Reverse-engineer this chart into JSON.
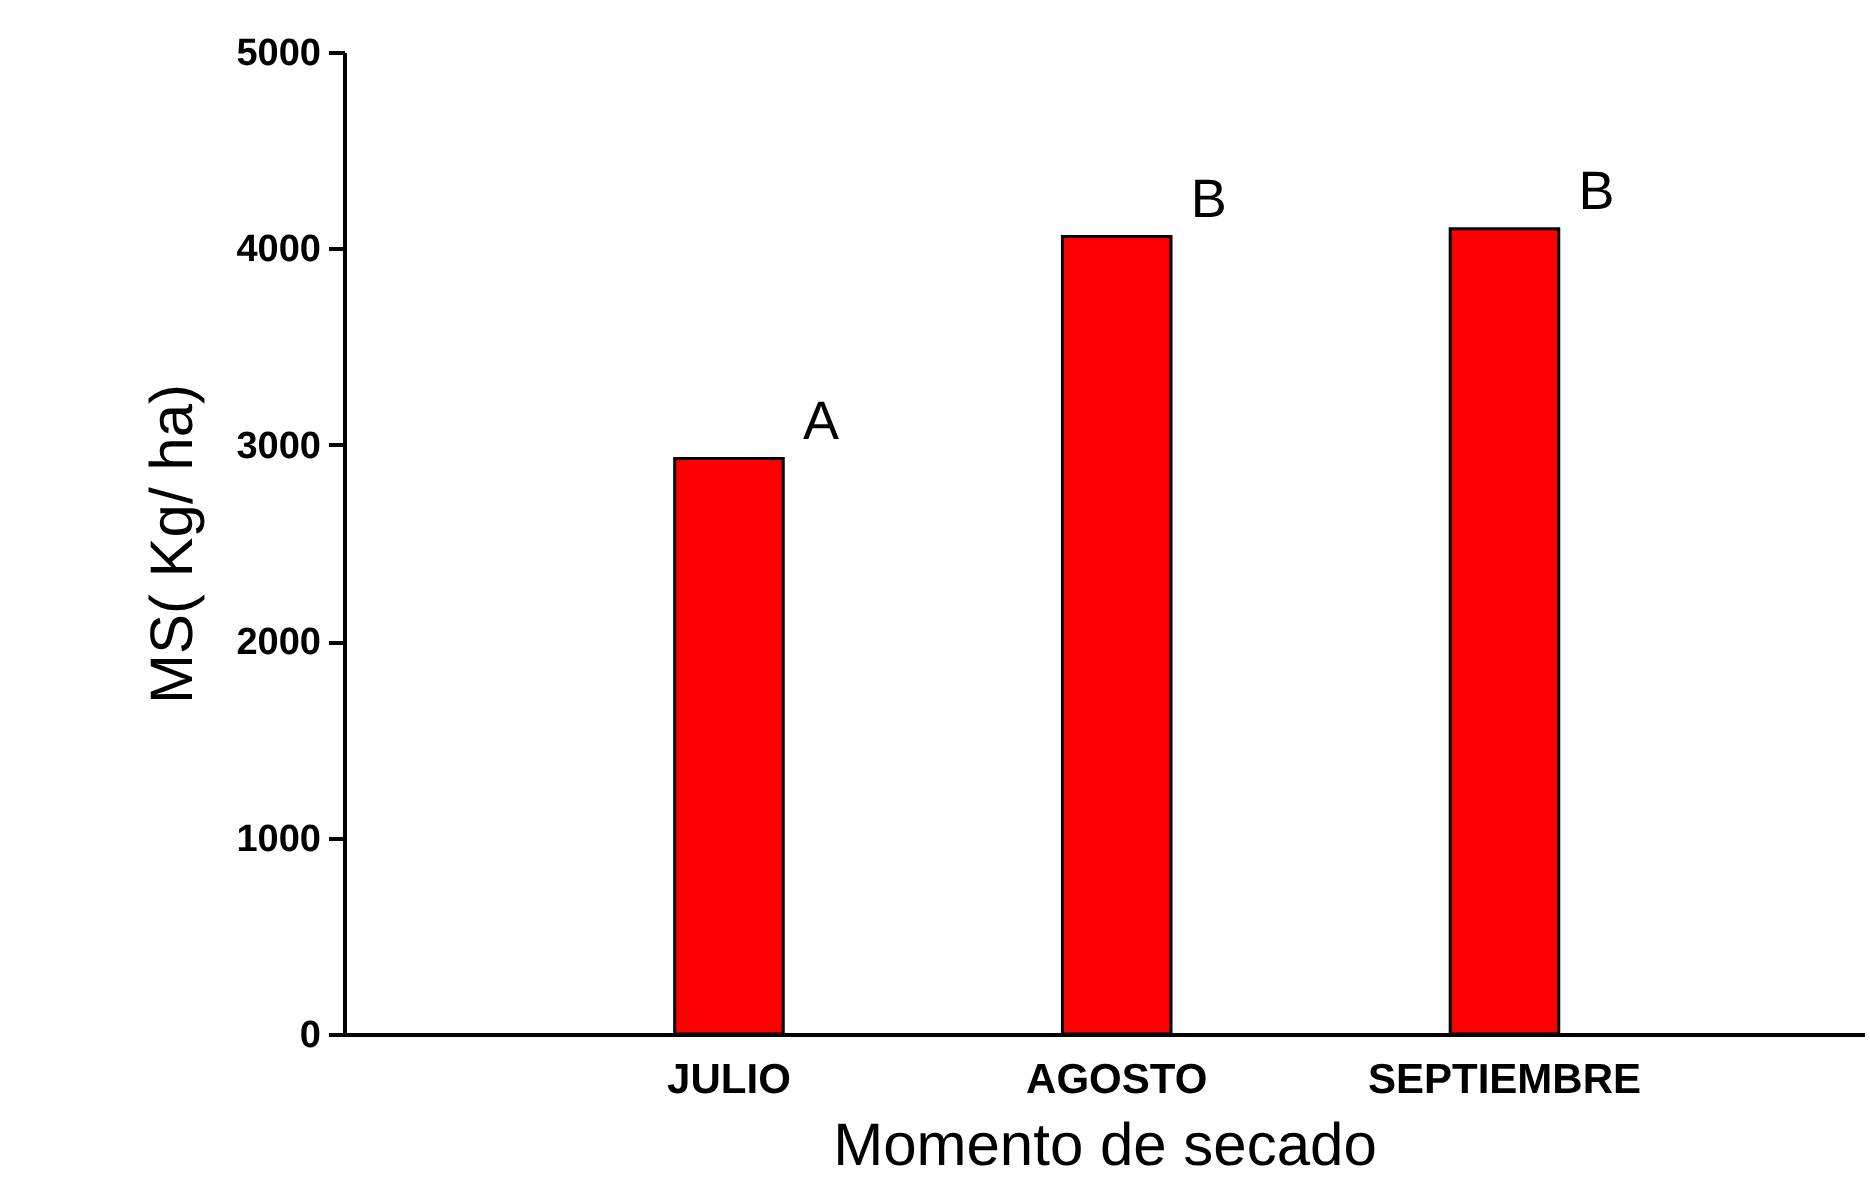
{
  "chart_data": {
    "type": "bar",
    "xlabel": "Momento de secado",
    "ylabel": "MS( Kg/ ha)",
    "categories": [
      "JULIO",
      "AGOSTO",
      "SEPTIEMBRE"
    ],
    "values": [
      2930,
      4060,
      4100
    ],
    "color": "#ff0000",
    "ylim": [
      0,
      5000
    ],
    "yticks": [
      0,
      1000,
      2000,
      3000,
      4000,
      5000
    ],
    "grid": false,
    "annotations": [
      {
        "text": "A",
        "x": "JULIO",
        "y": 2930
      },
      {
        "text": "B",
        "x": "AGOSTO",
        "y": 4060
      },
      {
        "text": "B",
        "x": "SEPTIEMBRE",
        "y": 4100
      }
    ]
  }
}
